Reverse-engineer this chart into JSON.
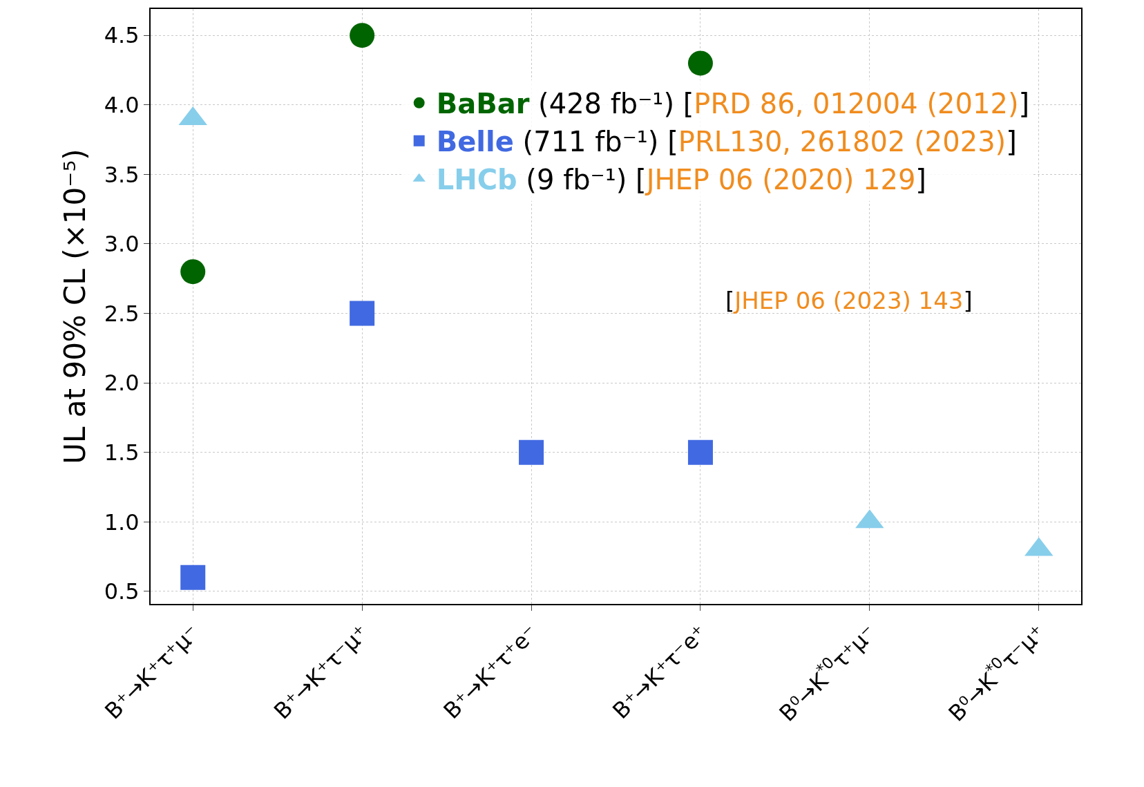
{
  "chart_data": {
    "type": "scatter",
    "ylabel": "UL at 90% CL (×10⁻⁵)",
    "categories": [
      "B⁺→K⁺τ⁺μ⁻",
      "B⁺→K⁺τ⁻μ⁺",
      "B⁺→K⁺τ⁺e⁻",
      "B⁺→K⁺τ⁻e⁺",
      "B⁰→K$^{*0}$τ⁺μ⁻",
      "B⁰→K$^{*0}$τ⁻μ⁺"
    ],
    "series": [
      {
        "name": "BaBar",
        "color": "#006400",
        "marker": "circle",
        "values": [
          2.8,
          4.5,
          null,
          4.3,
          null,
          null
        ]
      },
      {
        "name": "Belle",
        "color": "#4169e1",
        "marker": "square",
        "values": [
          0.6,
          2.5,
          1.5,
          1.5,
          null,
          null
        ]
      },
      {
        "name": "LHCb",
        "color": "#87ceeb",
        "marker": "triangle",
        "values": [
          3.9,
          null,
          null,
          null,
          1.0,
          0.8
        ]
      }
    ],
    "annotations": [
      "(428 fb⁻¹) [PRD 86, 012004 (2012)]",
      "(711 fb⁻¹) [PRL130, 261802 (2023)]",
      "(9 fb⁻¹) [JHEP 06 (2020) 129]",
      "[JHEP 06 (2023) 143]"
    ],
    "ylim": [
      0.41,
      4.69
    ],
    "yticks": [
      0.5,
      {
        "value": 1,
        "label": "1.0"
      },
      1.5,
      {
        "value": 2,
        "label": "2.0"
      },
      2.5,
      {
        "value": 3,
        "label": "3.0"
      },
      3.5,
      {
        "value": 4,
        "label": "4.0"
      },
      4.5
    ],
    "grid": true,
    "legend": "top"
  }
}
